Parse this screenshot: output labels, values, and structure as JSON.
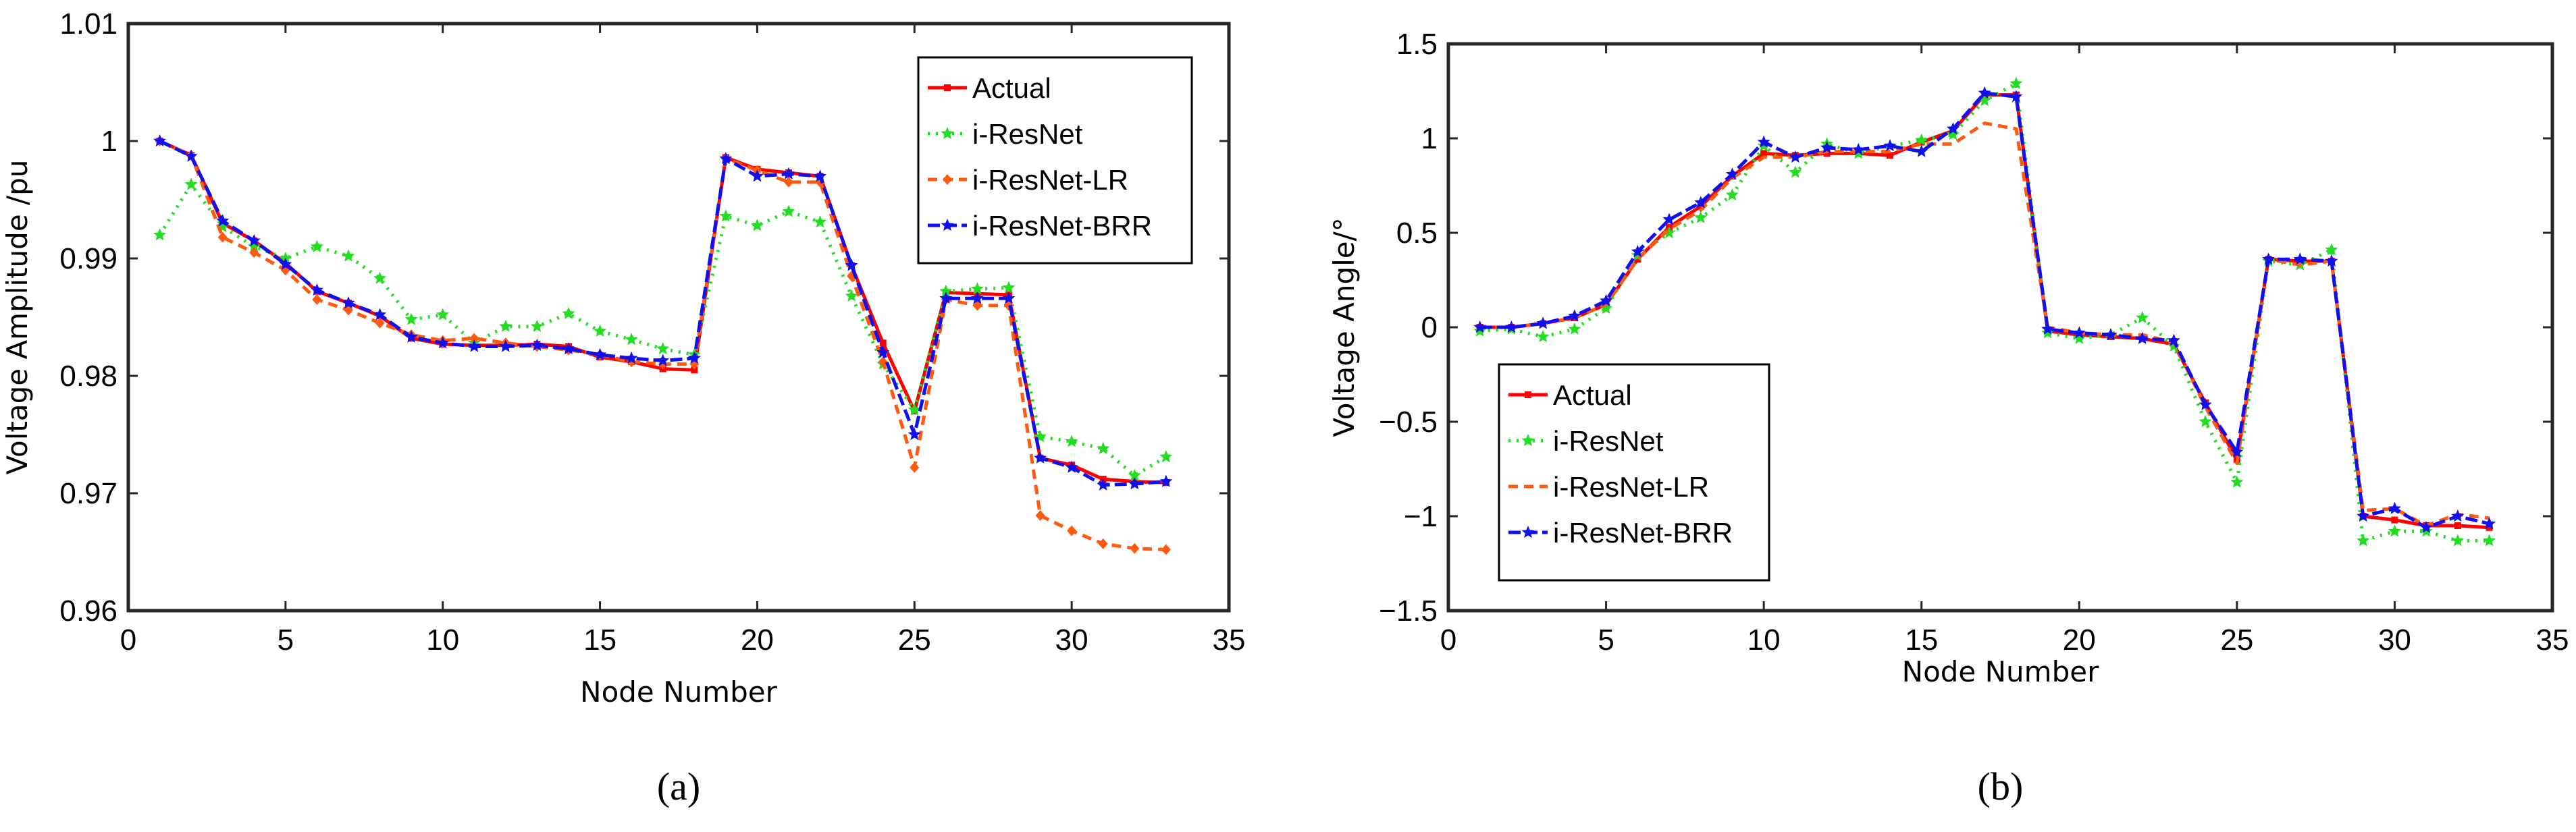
{
  "chart_data": [
    {
      "type": "line",
      "panel_label": "(a)",
      "xlabel": "Node Number",
      "ylabel": "Voltage Amplitude /pu",
      "xlim": [
        0,
        35
      ],
      "ylim": [
        0.96,
        1.01
      ],
      "xticks": [
        0,
        5,
        10,
        15,
        20,
        25,
        30,
        35
      ],
      "yticks": [
        0.96,
        0.97,
        0.98,
        0.99,
        1,
        1.01
      ],
      "ytick_labels": [
        "0.96",
        "0.97",
        "0.98",
        "0.99",
        "1",
        "1.01"
      ],
      "legend_position": "top-right",
      "x": [
        1,
        2,
        3,
        4,
        5,
        6,
        7,
        8,
        9,
        10,
        11,
        12,
        13,
        14,
        15,
        16,
        17,
        18,
        19,
        20,
        21,
        22,
        23,
        24,
        25,
        26,
        27,
        28,
        29,
        30,
        31,
        32,
        33
      ],
      "series": [
        {
          "name": "Actual",
          "color": "#ff0000",
          "dash": "",
          "marker": "square",
          "values": [
            1.0,
            0.9988,
            0.993,
            0.9915,
            0.9896,
            0.9872,
            0.9862,
            0.9851,
            0.9832,
            0.9827,
            0.9826,
            0.9826,
            0.9827,
            0.9825,
            0.9816,
            0.9812,
            0.9806,
            0.9805,
            0.9986,
            0.9976,
            0.9973,
            0.997,
            0.9894,
            0.9828,
            0.977,
            0.9871,
            0.987,
            0.9869,
            0.973,
            0.9724,
            0.9712,
            0.971,
            0.9709
          ]
        },
        {
          "name": "i-ResNet",
          "color": "#22dd22",
          "dash": "3 9",
          "marker": "star",
          "values": [
            0.992,
            0.9963,
            0.9927,
            0.991,
            0.99,
            0.991,
            0.9902,
            0.9883,
            0.9848,
            0.9852,
            0.9828,
            0.9842,
            0.9842,
            0.9853,
            0.9838,
            0.9831,
            0.9823,
            0.9818,
            0.9936,
            0.9928,
            0.994,
            0.9931,
            0.9868,
            0.981,
            0.9771,
            0.9872,
            0.9874,
            0.9875,
            0.9748,
            0.9744,
            0.9738,
            0.9715,
            0.9731
          ]
        },
        {
          "name": "i-ResNet-LR",
          "color": "#ff5a10",
          "dash": "14 9",
          "marker": "diamond",
          "values": [
            1.0,
            0.9988,
            0.9918,
            0.9905,
            0.989,
            0.9865,
            0.9856,
            0.9845,
            0.9835,
            0.983,
            0.9832,
            0.9828,
            0.9825,
            0.9822,
            0.9818,
            0.9812,
            0.981,
            0.981,
            0.9985,
            0.9975,
            0.9965,
            0.9965,
            0.9885,
            0.9812,
            0.9722,
            0.9865,
            0.986,
            0.986,
            0.9681,
            0.9668,
            0.9657,
            0.9653,
            0.9652
          ]
        },
        {
          "name": "i-ResNet-BRR",
          "color": "#1010ee",
          "dash": "18 7",
          "marker": "star",
          "values": [
            1.0,
            0.9987,
            0.9932,
            0.9915,
            0.9895,
            0.9873,
            0.9862,
            0.9852,
            0.9833,
            0.9828,
            0.9825,
            0.9825,
            0.9826,
            0.9823,
            0.9818,
            0.9815,
            0.9813,
            0.9815,
            0.9985,
            0.997,
            0.9972,
            0.997,
            0.9894,
            0.982,
            0.975,
            0.9866,
            0.9866,
            0.9866,
            0.973,
            0.9722,
            0.9707,
            0.9708,
            0.971
          ]
        }
      ]
    },
    {
      "type": "line",
      "panel_label": "(b)",
      "xlabel": "Node Number",
      "ylabel": "Voltage Angle/°",
      "xlim": [
        0,
        35
      ],
      "ylim": [
        -1.5,
        1.5
      ],
      "xticks": [
        0,
        5,
        10,
        15,
        20,
        25,
        30,
        35
      ],
      "yticks": [
        -1.5,
        -1,
        -0.5,
        0,
        0.5,
        1,
        1.5
      ],
      "ytick_labels": [
        "−1.5",
        "−1",
        "−0.5",
        "0",
        "0.5",
        "1",
        "1.5"
      ],
      "legend_position": "bottom-left",
      "x": [
        1,
        2,
        3,
        4,
        5,
        6,
        7,
        8,
        9,
        10,
        11,
        12,
        13,
        14,
        15,
        16,
        17,
        18,
        19,
        20,
        21,
        22,
        23,
        24,
        25,
        26,
        27,
        28,
        29,
        30,
        31,
        32,
        33
      ],
      "series": [
        {
          "name": "Actual",
          "color": "#ff0000",
          "dash": "",
          "marker": "square",
          "values": [
            0,
            0,
            0.02,
            0.05,
            0.12,
            0.36,
            0.53,
            0.64,
            0.8,
            0.92,
            0.91,
            0.92,
            0.92,
            0.91,
            0.98,
            1.04,
            1.23,
            1.23,
            -0.02,
            -0.04,
            -0.05,
            -0.06,
            -0.09,
            -0.4,
            -0.7,
            0.36,
            0.35,
            0.35,
            -1.0,
            -1.02,
            -1.05,
            -1.05,
            -1.06
          ]
        },
        {
          "name": "i-ResNet",
          "color": "#22dd22",
          "dash": "3 9",
          "marker": "star",
          "values": [
            -0.02,
            -0.01,
            -0.05,
            -0.01,
            0.1,
            0.38,
            0.5,
            0.58,
            0.7,
            0.96,
            0.82,
            0.97,
            0.92,
            0.96,
            0.99,
            1.02,
            1.2,
            1.29,
            -0.03,
            -0.06,
            -0.04,
            0.05,
            -0.1,
            -0.5,
            -0.82,
            0.35,
            0.33,
            0.41,
            -1.13,
            -1.08,
            -1.08,
            -1.13,
            -1.13
          ]
        },
        {
          "name": "i-ResNet-LR",
          "color": "#ff5a10",
          "dash": "14 9",
          "marker": "none",
          "values": [
            0,
            0,
            0.02,
            0.05,
            0.12,
            0.36,
            0.52,
            0.62,
            0.79,
            0.9,
            0.9,
            0.93,
            0.93,
            0.93,
            0.97,
            0.97,
            1.08,
            1.05,
            0,
            -0.03,
            -0.04,
            -0.04,
            -0.08,
            -0.42,
            -0.72,
            0.36,
            0.33,
            0.35,
            -0.97,
            -0.96,
            -1.05,
            -0.99,
            -1.01
          ]
        },
        {
          "name": "i-ResNet-BRR",
          "color": "#1010ee",
          "dash": "18 7",
          "marker": "star",
          "values": [
            0,
            0,
            0.02,
            0.06,
            0.14,
            0.4,
            0.57,
            0.66,
            0.81,
            0.98,
            0.9,
            0.95,
            0.94,
            0.96,
            0.93,
            1.05,
            1.24,
            1.22,
            -0.01,
            -0.03,
            -0.04,
            -0.06,
            -0.07,
            -0.41,
            -0.66,
            0.36,
            0.36,
            0.35,
            -1.0,
            -0.96,
            -1.06,
            -1.0,
            -1.04
          ]
        }
      ]
    }
  ]
}
